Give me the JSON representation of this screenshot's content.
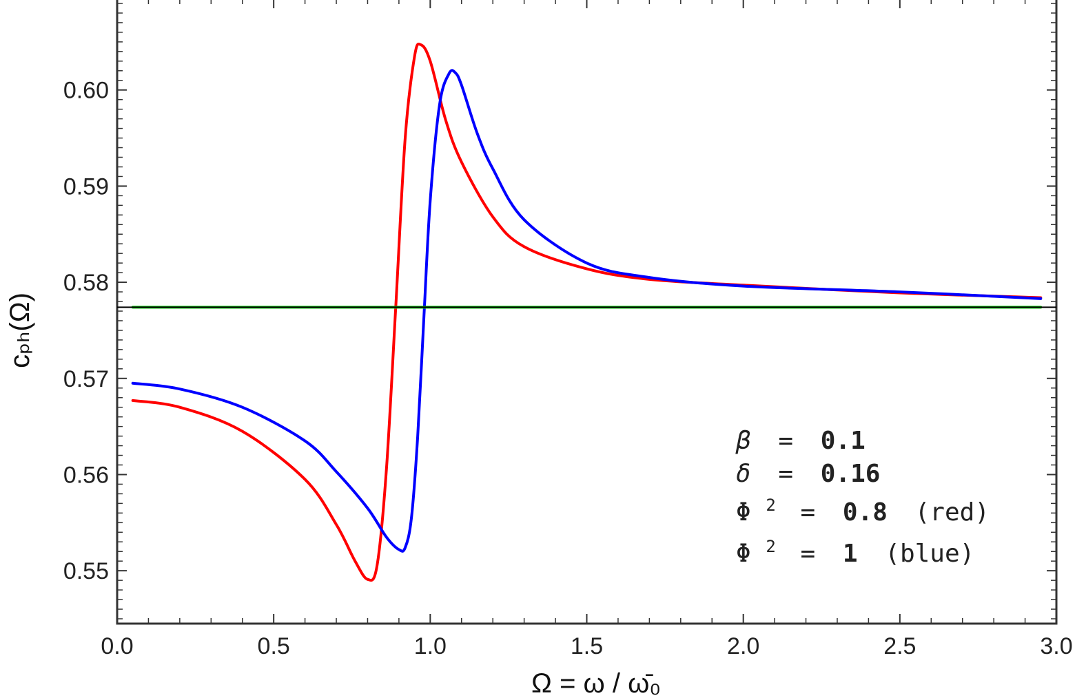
{
  "chart_data": {
    "type": "line",
    "xlabel": "Ω = ω / ω̄₀",
    "ylabel": "cₚₕ(Ω)",
    "xlim": [
      0.0,
      3.0
    ],
    "ylim": [
      0.5445,
      0.6095
    ],
    "x_ticks": [
      "0.0",
      "0.5",
      "1.0",
      "1.5",
      "2.0",
      "2.5",
      "3.0"
    ],
    "y_ticks": [
      "0.55",
      "0.56",
      "0.57",
      "0.58",
      "0.59",
      "0.60"
    ],
    "grid": false,
    "series": [
      {
        "color": "#ff0000",
        "x": [
          0.05,
          0.2,
          0.4,
          0.6,
          0.7,
          0.76,
          0.8,
          0.83,
          0.86,
          0.89,
          0.92,
          0.95,
          0.97,
          1.0,
          1.05,
          1.1,
          1.2,
          1.3,
          1.5,
          1.7,
          2.0,
          2.5,
          2.95
        ],
        "y": [
          0.5677,
          0.567,
          0.5645,
          0.5595,
          0.5548,
          0.551,
          0.5491,
          0.5505,
          0.5605,
          0.5775,
          0.595,
          0.6035,
          0.6047,
          0.603,
          0.5968,
          0.5925,
          0.5868,
          0.5837,
          0.5814,
          0.5803,
          0.5797,
          0.5789,
          0.5784
        ]
      },
      {
        "color": "#0000ff",
        "x": [
          0.05,
          0.2,
          0.4,
          0.6,
          0.7,
          0.8,
          0.86,
          0.9,
          0.92,
          0.94,
          0.96,
          0.98,
          1.0,
          1.03,
          1.06,
          1.08,
          1.1,
          1.15,
          1.2,
          1.3,
          1.5,
          1.7,
          2.0,
          2.5,
          2.95
        ],
        "y": [
          0.5695,
          0.5689,
          0.567,
          0.5635,
          0.5603,
          0.5565,
          0.5535,
          0.5522,
          0.5524,
          0.5555,
          0.564,
          0.5765,
          0.5885,
          0.5985,
          0.6017,
          0.6018,
          0.6005,
          0.5955,
          0.5918,
          0.5865,
          0.582,
          0.5805,
          0.5796,
          0.579,
          0.5783
        ]
      },
      {
        "color": "#00cc00",
        "x": [
          0.05,
          2.95
        ],
        "y": [
          0.5774,
          0.5774
        ]
      }
    ],
    "reference_line": {
      "y": 0.5774,
      "color": "#000000"
    }
  },
  "annotations": [
    {
      "symbol": "β",
      "sup": "",
      "eq": "=",
      "value": "0.1",
      "note": ""
    },
    {
      "symbol": "δ",
      "sup": "",
      "eq": "=",
      "value": "0.16",
      "note": ""
    },
    {
      "symbol": "Φ",
      "sup": "2",
      "eq": "=",
      "value": "0.8",
      "note": "(red)"
    },
    {
      "symbol": "Φ",
      "sup": "2",
      "eq": "=",
      "value": "1",
      "note": "(blue)"
    }
  ]
}
